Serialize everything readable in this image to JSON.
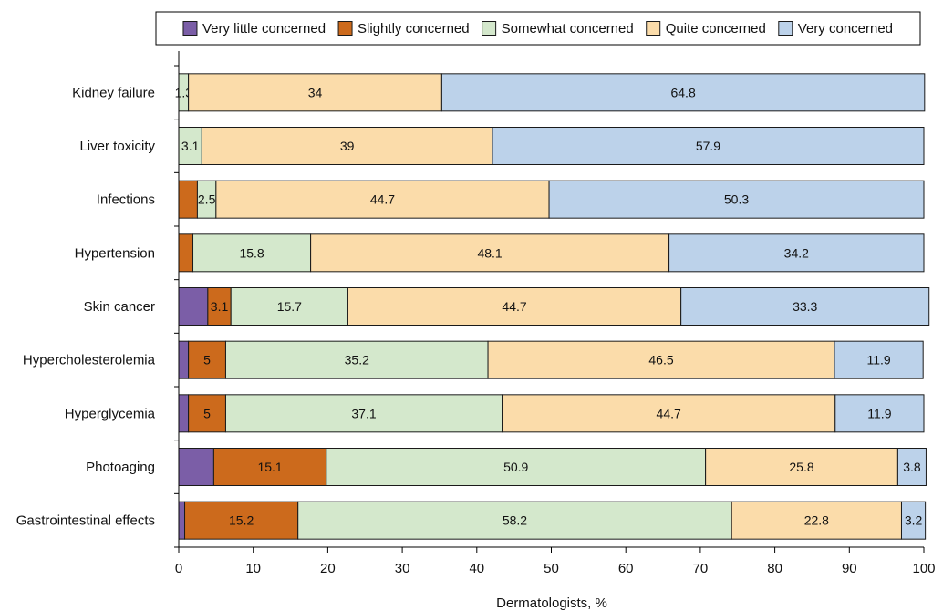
{
  "chart_data": {
    "type": "bar",
    "orientation": "horizontal",
    "stacked": true,
    "categories": [
      "Kidney failure",
      "Liver toxicity",
      "Infections",
      "Hypertension",
      "Skin cancer",
      "Hypercholesterolemia",
      "Hyperglycemia",
      "Photoaging",
      "Gastrointestinal effects"
    ],
    "series": [
      {
        "name": "Very little concerned",
        "color": "#7b5ea7",
        "values": [
          0,
          0,
          0,
          0,
          3.9,
          1.3,
          1.3,
          4.7,
          0.8
        ]
      },
      {
        "name": "Slightly concerned",
        "color": "#cc6a1c",
        "values": [
          0,
          0,
          2.5,
          1.9,
          3.1,
          5,
          5,
          15.1,
          15.2
        ]
      },
      {
        "name": "Somewhat concerned",
        "color": "#d4e8cc",
        "values": [
          1.3,
          3.1,
          2.5,
          15.8,
          15.7,
          35.2,
          37.1,
          50.9,
          58.2
        ]
      },
      {
        "name": "Quite concerned",
        "color": "#fbdcaa",
        "values": [
          34,
          39,
          44.7,
          48.1,
          44.7,
          46.5,
          44.7,
          25.8,
          22.8
        ]
      },
      {
        "name": "Very concerned",
        "color": "#bcd2ea",
        "values": [
          64.8,
          57.9,
          50.3,
          34.2,
          33.3,
          11.9,
          11.9,
          3.8,
          3.2
        ]
      }
    ],
    "data_labels": [
      [
        "",
        "",
        "1.3",
        "34",
        "64.8"
      ],
      [
        "",
        "",
        "3.1",
        "39",
        "57.9"
      ],
      [
        "",
        "",
        "2.5",
        "44.7",
        "50.3"
      ],
      [
        "",
        "",
        "15.8",
        "48.1",
        "34.2"
      ],
      [
        "",
        "3.1",
        "15.7",
        "44.7",
        "33.3"
      ],
      [
        "",
        "5",
        "35.2",
        "46.5",
        "11.9"
      ],
      [
        "",
        "5",
        "37.1",
        "44.7",
        "11.9"
      ],
      [
        "",
        "15.1",
        "50.9",
        "25.8",
        "3.8"
      ],
      [
        "",
        "15.2",
        "58.2",
        "22.8",
        "3.2"
      ]
    ],
    "xlabel": "Dermatologists, %",
    "ylabel": "",
    "xlim": [
      0,
      100
    ],
    "xticks": [
      "0",
      "10",
      "20",
      "30",
      "40",
      "50",
      "60",
      "70",
      "80",
      "90",
      "100"
    ],
    "grid": false,
    "legend_position": "top"
  }
}
